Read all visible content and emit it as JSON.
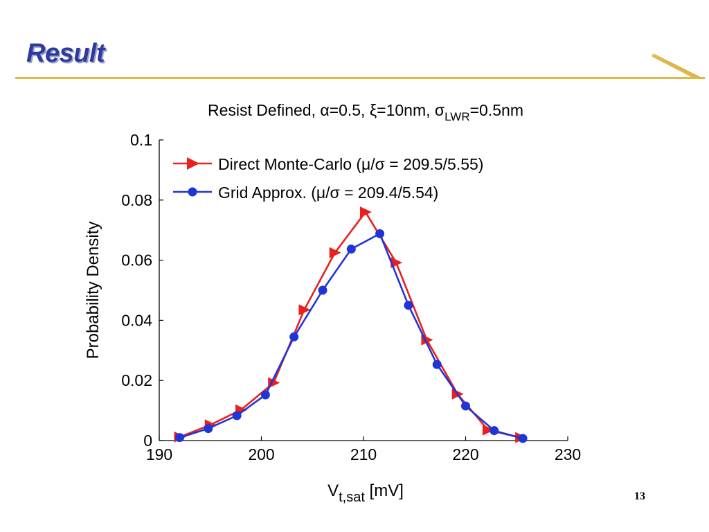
{
  "slide": {
    "title": "Result",
    "page_number": "13"
  },
  "colors": {
    "title": "#2f3a9e",
    "rule": "#e0b84a",
    "series_mc": "#e8201e",
    "series_grid": "#1f35d6"
  },
  "chart_data": {
    "type": "line",
    "title": {
      "prefix": "Resist Defined, ",
      "alpha": "α",
      "alpha_val": "=0.5, ",
      "xi": "ξ",
      "xi_val": "=10nm, ",
      "sigma": "σ",
      "sigma_sub": "LWR",
      "sigma_val": "=0.5nm"
    },
    "xlabel": {
      "main": "V",
      "sub": "t,sat",
      "unit": " [mV]"
    },
    "ylabel": "Probability Density",
    "xlim": [
      190,
      230
    ],
    "ylim": [
      0,
      0.1
    ],
    "xticks": [
      "190",
      "200",
      "210",
      "220",
      "230"
    ],
    "yticks": [
      "0",
      "0.02",
      "0.04",
      "0.06",
      "0.08",
      "0.1"
    ],
    "legend_position": "top-left",
    "series": [
      {
        "name": "Direct Monte-Carlo (μ/σ = 209.5/5.55)",
        "marker": "triangle-right",
        "color": "#e8201e",
        "x": [
          192.0,
          195.0,
          198.0,
          201.2,
          204.2,
          207.2,
          210.2,
          213.2,
          216.2,
          219.2,
          222.2,
          225.4
        ],
        "y": [
          0.0012,
          0.0052,
          0.0102,
          0.0192,
          0.0435,
          0.0625,
          0.076,
          0.0592,
          0.0335,
          0.0155,
          0.0035,
          0.001
        ]
      },
      {
        "name": "Grid Approx. (μ/σ = 209.4/5.54)",
        "marker": "circle",
        "color": "#1f35d6",
        "x": [
          192.0,
          194.8,
          197.6,
          200.4,
          203.2,
          206.0,
          208.8,
          211.6,
          214.4,
          217.2,
          220.0,
          222.8,
          225.6
        ],
        "y": [
          0.001,
          0.004,
          0.0083,
          0.0152,
          0.0345,
          0.05,
          0.0637,
          0.0688,
          0.045,
          0.0253,
          0.0115,
          0.0033,
          0.0007
        ]
      }
    ]
  }
}
